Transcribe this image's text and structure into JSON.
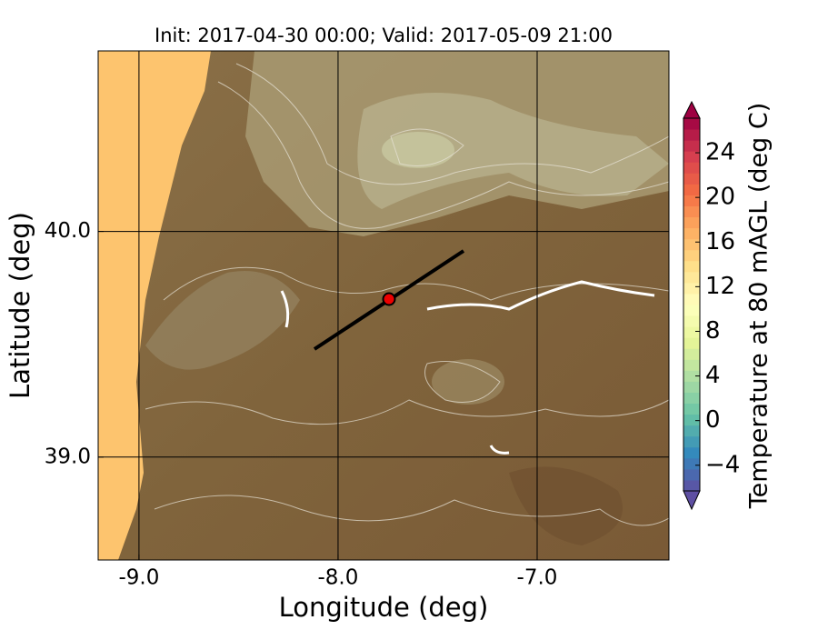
{
  "title": "Init: 2017-04-30 00:00; Valid: 2017-05-09 21:00",
  "map": {
    "x_label": "Longitude (deg)",
    "y_label": "Latitude (deg)",
    "xlim": [
      -9.205,
      -6.338
    ],
    "ylim": [
      38.544,
      40.8
    ],
    "xticks": [
      {
        "value": -9,
        "label": "-9.0"
      },
      {
        "value": -8,
        "label": "-8.0"
      },
      {
        "value": -7,
        "label": "-7.0"
      }
    ],
    "yticks": [
      {
        "value": 39,
        "label": "39.0"
      },
      {
        "value": 40,
        "label": "40.0"
      }
    ],
    "grid": true
  },
  "colorbar": {
    "label": "Temperature at 80 mAGL (deg C)",
    "colormap": "Spectral_r",
    "lim": [
      -6.3,
      27.1
    ],
    "ticks": [
      {
        "value": -4,
        "label": "−4"
      },
      0,
      4,
      8,
      12,
      16,
      20,
      24
    ]
  }
}
